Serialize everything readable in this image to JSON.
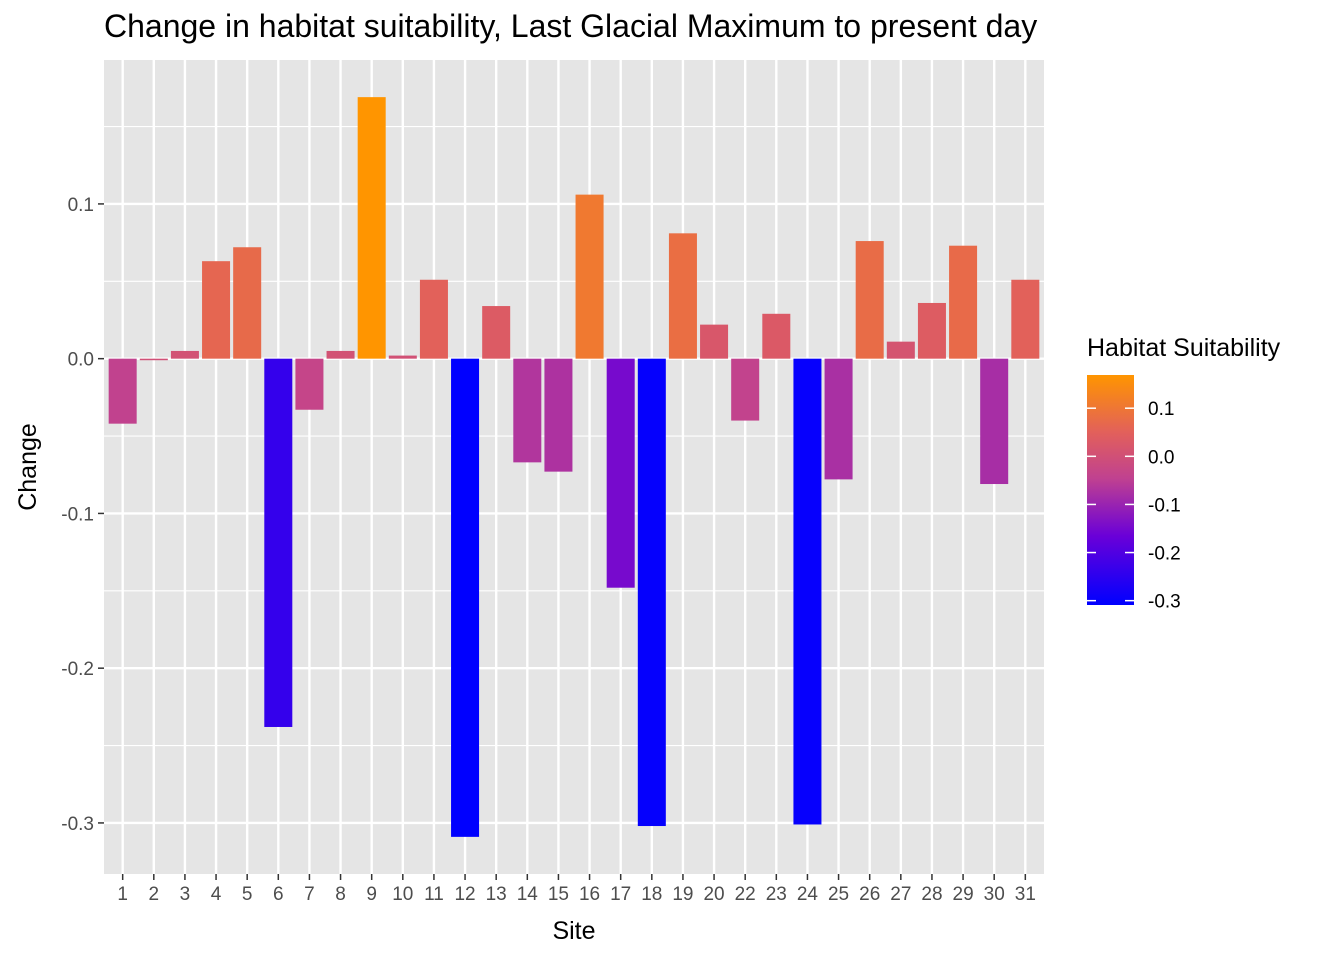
{
  "chart_data": {
    "type": "bar",
    "title": "Change in habitat suitability, Last Glacial Maximum to present day",
    "xlabel": "Site",
    "ylabel": "Change",
    "categories": [
      "1",
      "2",
      "3",
      "4",
      "5",
      "6",
      "7",
      "8",
      "9",
      "10",
      "11",
      "12",
      "13",
      "14",
      "15",
      "16",
      "17",
      "18",
      "19",
      "20",
      "22",
      "23",
      "24",
      "25",
      "26",
      "27",
      "28",
      "29",
      "30",
      "31"
    ],
    "values": [
      -0.042,
      -0.001,
      0.005,
      0.063,
      0.072,
      -0.238,
      -0.033,
      0.005,
      0.169,
      0.002,
      0.051,
      -0.309,
      0.034,
      -0.067,
      -0.073,
      0.106,
      -0.148,
      -0.302,
      0.081,
      0.022,
      -0.04,
      0.029,
      -0.301,
      -0.078,
      0.076,
      0.011,
      0.036,
      0.073,
      -0.081,
      0.051
    ],
    "ylim": [
      -0.333,
      0.193
    ],
    "yticks": [
      -0.3,
      -0.2,
      -0.1,
      0.0,
      0.1
    ],
    "ytick_labels": [
      "-0.3",
      "-0.2",
      "-0.1",
      "0.0",
      "0.1"
    ],
    "grid": true,
    "legend": {
      "title": "Habitat Suitability",
      "placement": "right",
      "type": "colorbar",
      "range": [
        -0.309,
        0.169
      ],
      "ticks": [
        0.1,
        0.0,
        -0.1,
        -0.2,
        -0.3
      ],
      "tick_labels": [
        "0.1",
        "0.0",
        "-0.1",
        "-0.2",
        "-0.3"
      ],
      "colors": {
        "low": "#0000ff",
        "high": "#ff9500"
      }
    },
    "colors": {
      "panel_background": "#e5e5e5",
      "grid": "#ffffff"
    }
  }
}
